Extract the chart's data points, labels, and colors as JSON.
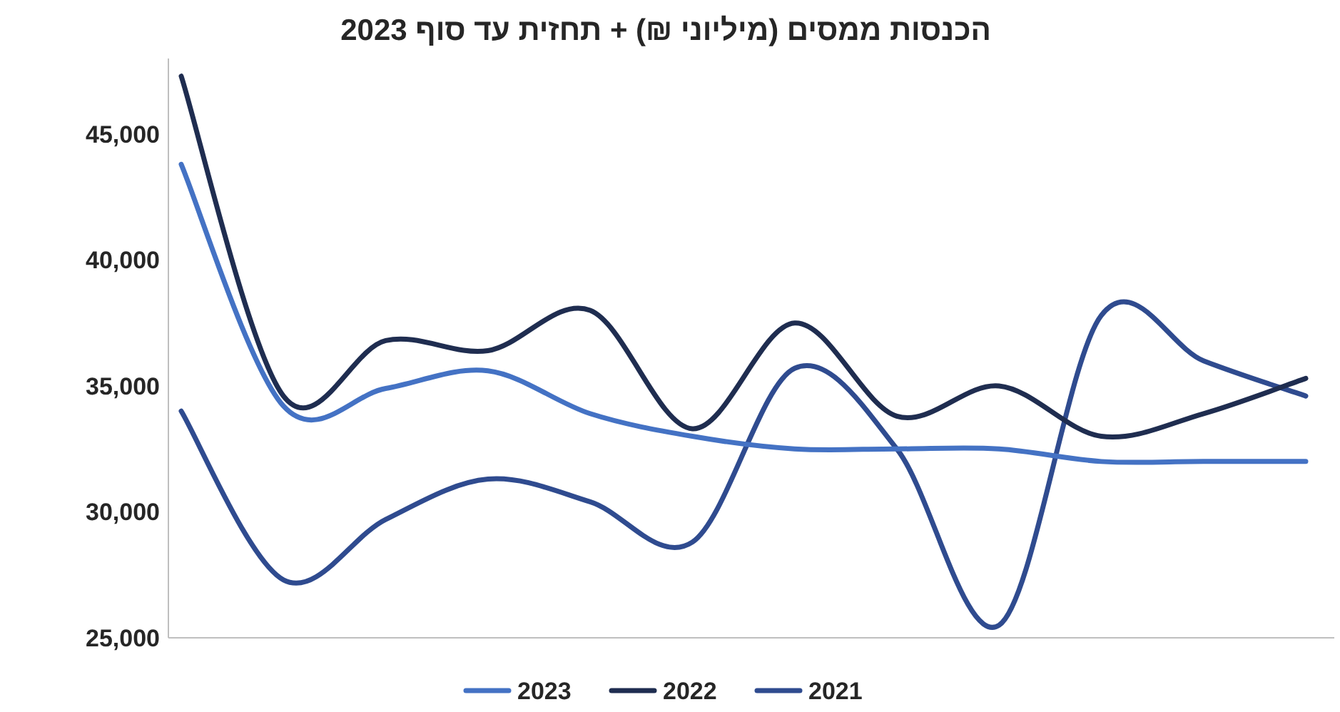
{
  "chart_data": {
    "type": "line",
    "title": "הכנסות ממסים (מיליוני ₪) + תחזית עד סוף 2023",
    "categories": [
      null,
      null,
      null,
      null,
      null,
      null,
      null,
      null,
      null,
      null,
      null,
      null
    ],
    "series": [
      {
        "name": "2023",
        "color": "#4472c4",
        "values": [
          43800,
          34200,
          34900,
          35600,
          33900,
          33000,
          32500,
          32500,
          32500,
          32000,
          32000,
          32000
        ]
      },
      {
        "name": "2022",
        "color": "#1f2d50",
        "values": [
          47300,
          34600,
          36800,
          36400,
          38000,
          33300,
          37500,
          33800,
          35000,
          33000,
          33900,
          35300
        ]
      },
      {
        "name": "2021",
        "color": "#2f4b8f",
        "values": [
          34000,
          27300,
          29700,
          31300,
          30400,
          28800,
          35700,
          32500,
          25500,
          37800,
          36000,
          34600
        ]
      }
    ],
    "ylim": [
      25000,
      48000
    ],
    "yticks": [
      {
        "value": 25000,
        "label": "25,000"
      },
      {
        "value": 30000,
        "label": "30,000"
      },
      {
        "value": 35000,
        "label": "35,000"
      },
      {
        "value": 40000,
        "label": "40,000"
      },
      {
        "value": 45000,
        "label": "45,000"
      }
    ],
    "grid": false,
    "legend": "bottom",
    "marker": "none",
    "line_style": "solid"
  }
}
